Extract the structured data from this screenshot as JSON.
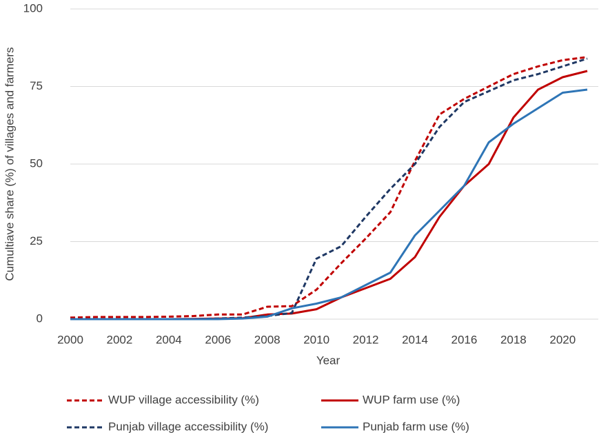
{
  "chart_data": {
    "type": "line",
    "x_label": "Year",
    "y_label": "Cumultiave share (%) of villages and farmers",
    "x": [
      2000,
      2001,
      2002,
      2003,
      2004,
      2005,
      2006,
      2007,
      2008,
      2009,
      2010,
      2011,
      2012,
      2013,
      2014,
      2015,
      2016,
      2017,
      2018,
      2019,
      2020,
      2021
    ],
    "xlim": [
      2000,
      2021
    ],
    "xticks": [
      2000,
      2002,
      2004,
      2006,
      2008,
      2010,
      2012,
      2014,
      2016,
      2018,
      2020
    ],
    "ylim": [
      0,
      100
    ],
    "yticks": [
      0,
      25,
      50,
      75,
      100
    ],
    "grid": true,
    "legend": "bottom",
    "series": [
      {
        "name": "WUP village accessibility (%)",
        "color": "#c00000",
        "dashed": true,
        "values": [
          0.5,
          0.7,
          0.7,
          0.7,
          0.8,
          1,
          1.5,
          1.5,
          4,
          4.2,
          9.5,
          18,
          26,
          34.5,
          51,
          66,
          71,
          75,
          79,
          81.5,
          83.5,
          84.5
        ]
      },
      {
        "name": "WUP farm use (%)",
        "color": "#c00000",
        "dashed": false,
        "values": [
          0,
          0,
          0,
          0,
          0,
          0.1,
          0.2,
          0.3,
          1.5,
          1.8,
          3.2,
          7,
          10,
          13,
          20,
          33,
          43,
          50,
          65,
          74,
          78,
          80
        ]
      },
      {
        "name": "Punjab village accessibility (%)",
        "color": "#1f3864",
        "dashed": true,
        "values": [
          0,
          0,
          0,
          0,
          0,
          0,
          0.2,
          0.5,
          1,
          2,
          19.5,
          23.5,
          33,
          42,
          50,
          62,
          70,
          73.5,
          77,
          79,
          81.5,
          84
        ]
      },
      {
        "name": "Punjab farm use (%)",
        "color": "#2e75b6",
        "dashed": false,
        "values": [
          0,
          0,
          0,
          0,
          0,
          0,
          0,
          0.2,
          0.8,
          3.5,
          5,
          7,
          11,
          15,
          27,
          35,
          43,
          57,
          63,
          68,
          73,
          74
        ]
      }
    ]
  }
}
